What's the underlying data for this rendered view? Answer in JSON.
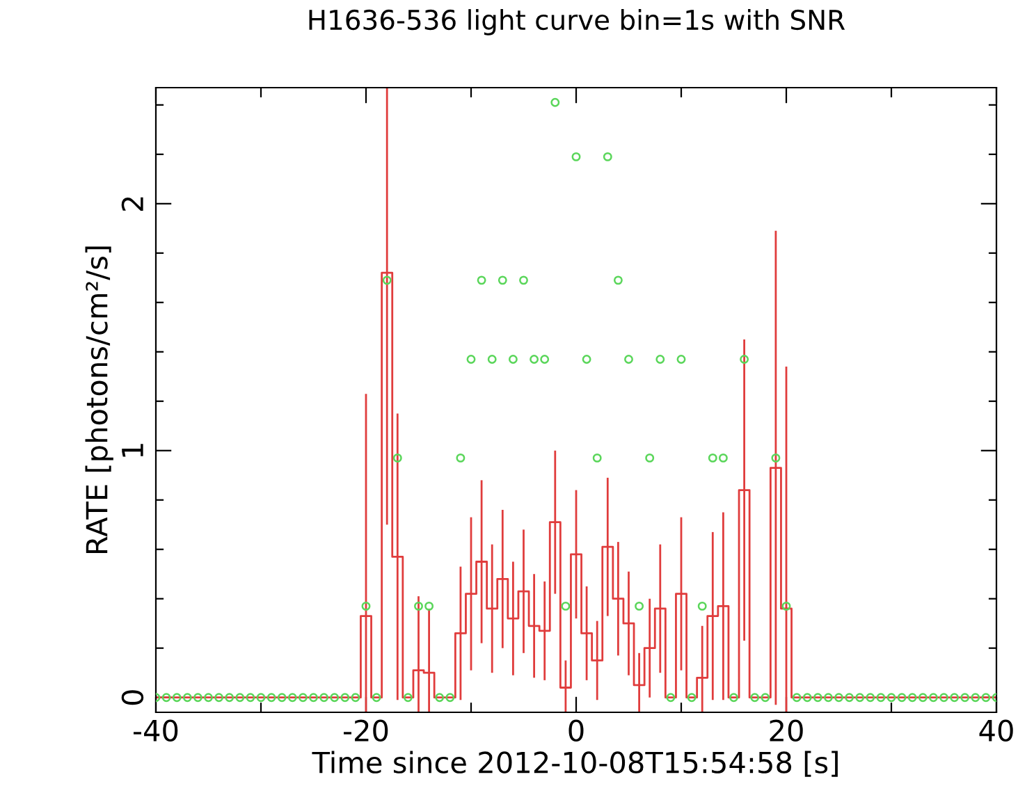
{
  "chart_data": {
    "type": "step",
    "title": "H1636-536 light curve bin=1s with SNR",
    "xlabel": "Time since 2012-10-08T15:54:58 [s]",
    "ylabel": "RATE [photons/cm²/s]",
    "x": [
      -40,
      -39,
      -38,
      -37,
      -36,
      -35,
      -34,
      -33,
      -32,
      -31,
      -30,
      -29,
      -28,
      -27,
      -26,
      -25,
      -24,
      -23,
      -22,
      -21,
      -20,
      -19,
      -18,
      -17,
      -16,
      -15,
      -14,
      -13,
      -12,
      -11,
      -10,
      -9,
      -8,
      -7,
      -6,
      -5,
      -4,
      -3,
      -2,
      -1,
      0,
      1,
      2,
      3,
      4,
      5,
      6,
      7,
      8,
      9,
      10,
      11,
      12,
      13,
      14,
      15,
      16,
      17,
      18,
      19,
      20,
      21,
      22,
      23,
      24,
      25,
      26,
      27,
      28,
      29,
      30,
      31,
      32,
      33,
      34,
      35,
      36,
      37,
      38,
      39,
      40
    ],
    "series": [
      {
        "color": "#e03c3c",
        "line_style": "solid",
        "marker": "none",
        "values": [
          0,
          0,
          0,
          0,
          0,
          0,
          0,
          0,
          0,
          0,
          0,
          0,
          0,
          0,
          0,
          0,
          0,
          0,
          0,
          0,
          0.33,
          0,
          1.72,
          0.57,
          0,
          0.11,
          0.1,
          0,
          0,
          0.26,
          0.42,
          0.55,
          0.36,
          0.48,
          0.32,
          0.43,
          0.29,
          0.27,
          0.71,
          0.04,
          0.58,
          0.26,
          0.15,
          0.61,
          0.4,
          0.3,
          0.05,
          0.2,
          0.36,
          0,
          0.42,
          0,
          0.08,
          0.33,
          0.37,
          0,
          0.84,
          0,
          0,
          0.93,
          0.36,
          0,
          0,
          0,
          0,
          0,
          0,
          0,
          0,
          0,
          0,
          0,
          0,
          0,
          0,
          0,
          0,
          0,
          0,
          0,
          0
        ],
        "errors": [
          null,
          null,
          null,
          null,
          null,
          null,
          null,
          null,
          null,
          null,
          null,
          null,
          null,
          null,
          null,
          null,
          null,
          null,
          null,
          null,
          [
            -0.06,
            1.23
          ],
          null,
          1.02,
          0.58,
          null,
          0.3,
          0.26,
          null,
          null,
          0.27,
          0.31,
          0.33,
          0.26,
          0.28,
          0.23,
          0.25,
          0.21,
          0.2,
          0.29,
          0.11,
          0.26,
          0.19,
          0.16,
          0.28,
          0.23,
          0.21,
          0.13,
          0.2,
          0.26,
          null,
          0.31,
          null,
          0.21,
          0.34,
          0.38,
          null,
          0.61,
          null,
          null,
          0.96,
          [
            -0.06,
            1.34
          ],
          null,
          null,
          null,
          null,
          null,
          null,
          null,
          null,
          null,
          null,
          null,
          null,
          null,
          null,
          null,
          null,
          null,
          null,
          null,
          null
        ]
      },
      {
        "type": "scatter",
        "color": "#5ad65a",
        "marker": "circle",
        "values": [
          0,
          0,
          0,
          0,
          0,
          0,
          0,
          0,
          0,
          0,
          0,
          0,
          0,
          0,
          0,
          0,
          0,
          0,
          0,
          0,
          0.37,
          0,
          1.69,
          0.97,
          0,
          0.37,
          0.37,
          0,
          0,
          0.97,
          1.37,
          1.69,
          1.37,
          1.69,
          1.37,
          1.69,
          1.37,
          1.37,
          2.41,
          0.37,
          2.19,
          1.37,
          0.97,
          2.19,
          1.69,
          1.37,
          0.37,
          0.97,
          1.37,
          0,
          1.37,
          0,
          0.37,
          0.97,
          0.97,
          0,
          1.37,
          0,
          0,
          0.97,
          0.37,
          0,
          0,
          0,
          0,
          0,
          0,
          0,
          0,
          0,
          0,
          0,
          0,
          0,
          0,
          0,
          0,
          0,
          0,
          0,
          0
        ]
      }
    ],
    "xlim": [
      -40,
      40
    ],
    "ylim": [
      -0.06,
      2.47
    ],
    "xticks": [
      -40,
      {
        "value": -30,
        "label": null
      },
      -20,
      {
        "value": -10,
        "label": null
      },
      0,
      {
        "value": 10,
        "label": null
      },
      20,
      {
        "value": 30,
        "label": null
      },
      40
    ],
    "yticks": [
      0,
      {
        "value": 0.2,
        "label": null
      },
      {
        "value": 0.4,
        "label": null
      },
      {
        "value": 0.6,
        "label": null
      },
      {
        "value": 0.8,
        "label": null
      },
      1,
      {
        "value": 1.2,
        "label": null
      },
      {
        "value": 1.4,
        "label": null
      },
      {
        "value": 1.6,
        "label": null
      },
      {
        "value": 1.8,
        "label": null
      },
      2,
      {
        "value": 2.2,
        "label": null
      },
      {
        "value": 2.4,
        "label": null
      }
    ],
    "grid": false
  }
}
